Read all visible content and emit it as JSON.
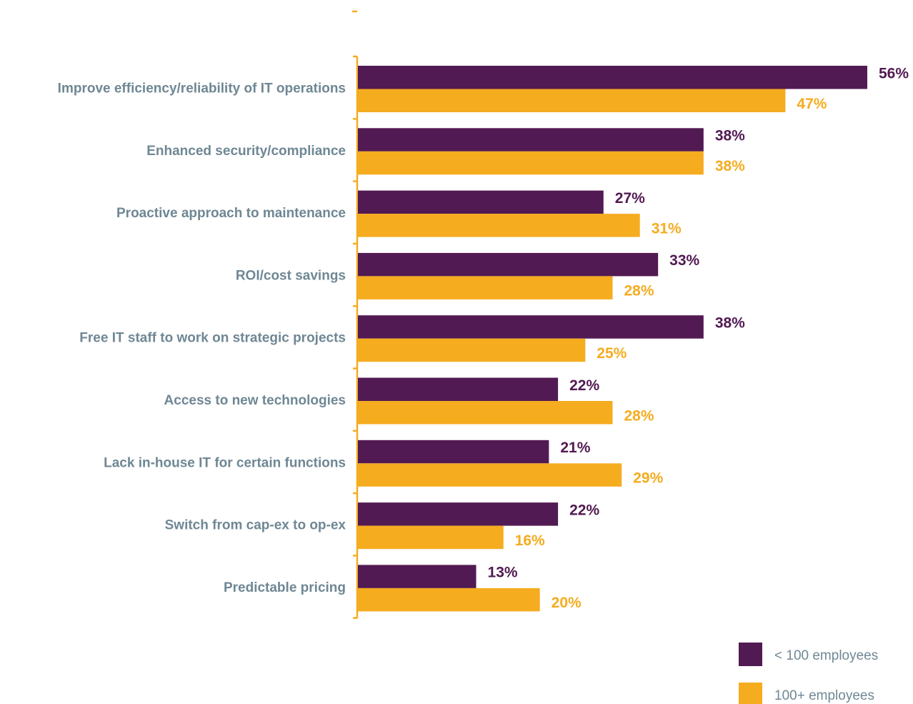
{
  "chart_data": {
    "type": "bar",
    "orientation": "horizontal",
    "categories": [
      "Improve efficiency/reliability of IT operations",
      "Enhanced security/compliance",
      "Proactive approach to maintenance",
      "ROI/cost  savings",
      "Free IT staff to work on strategic projects",
      "Access to new technologies",
      "Lack in-house IT for certain functions",
      "Switch from cap-ex to op-ex",
      "Predictable pricing"
    ],
    "series": [
      {
        "name": "< 100 employees",
        "color": "#521a52",
        "values": [
          56,
          38,
          27,
          33,
          38,
          22,
          21,
          22,
          13
        ],
        "labels": [
          "56%",
          "38%",
          "27%",
          "33%",
          "38%",
          "22%",
          "21%",
          "22%",
          "13%"
        ]
      },
      {
        "name": "100+ employees",
        "color": "#f5ac1f",
        "values": [
          47,
          38,
          31,
          28,
          25,
          28,
          29,
          16,
          20
        ],
        "labels": [
          "47%",
          "38%",
          "31%",
          "28%",
          "25%",
          "28%",
          "29%",
          "16%",
          "20%"
        ]
      }
    ],
    "axis_color": "#f5ac1f",
    "label_color": "#6f8794",
    "grid": false,
    "legend_position": "bottom-right",
    "xlim": [
      0,
      56
    ]
  }
}
